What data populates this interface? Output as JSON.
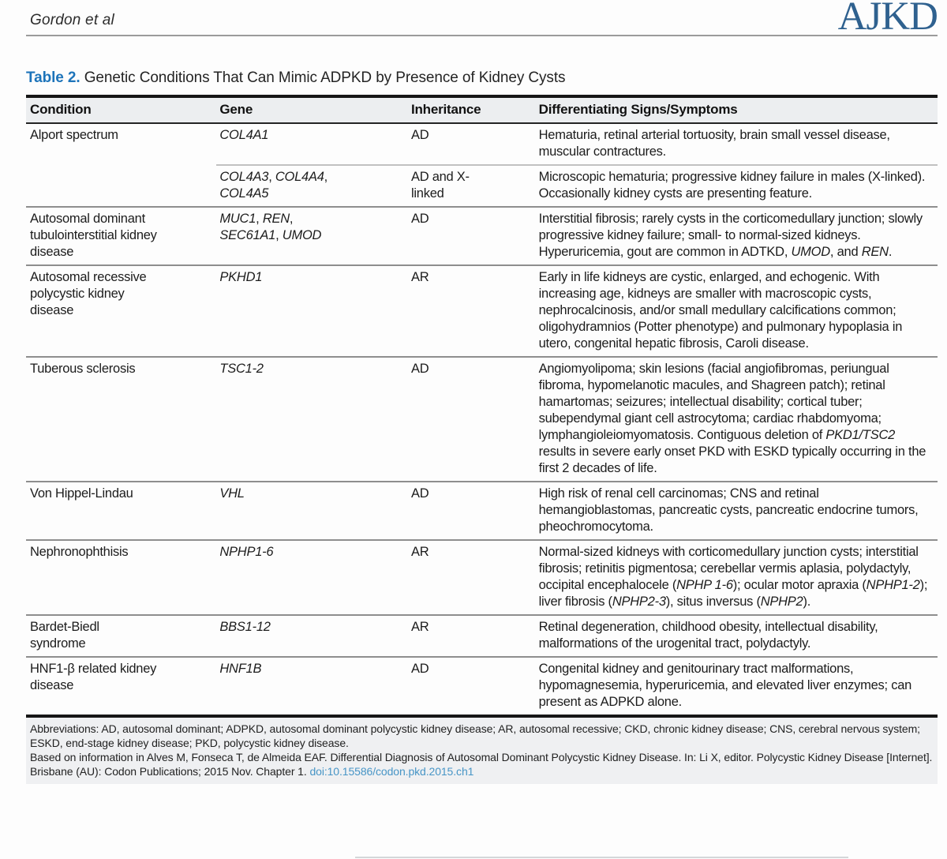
{
  "page": {
    "running_head": "Gordon et al",
    "journal_logo": "AJKD"
  },
  "colors": {
    "table_label_blue": "#1d74ba",
    "logo_blue": "#2f618f",
    "doi_link_blue": "#4795c6",
    "header_row_bg": "#eceef0",
    "footnote_bg": "#eff0f2"
  },
  "table": {
    "label": "Table 2.",
    "title": "Genetic Conditions That Can Mimic ADPKD by Presence of Kidney Cysts",
    "columns": [
      "Condition",
      "Gene",
      "Inheritance",
      "Differentiating Signs/Symptoms"
    ],
    "rows": [
      {
        "sub": false,
        "condition": "Alport spectrum",
        "gene": [
          {
            "i": "COL4A1"
          }
        ],
        "inheritance": "AD",
        "signs": [
          "Hematuria, retinal arterial tortuosity, brain small vessel disease, muscular contractures."
        ]
      },
      {
        "sub": true,
        "condition": "",
        "gene": [
          {
            "i": "COL4A3"
          },
          ", ",
          {
            "i": "COL4A4"
          },
          ", ",
          {
            "i": "COL4A5"
          }
        ],
        "inheritance": "AD and X-linked",
        "signs": [
          "Microscopic hematuria; progressive kidney failure in males (X-linked). Occasionally kidney cysts are presenting feature."
        ]
      },
      {
        "sub": false,
        "condition": "Autosomal dominant tubulointerstitial kidney disease",
        "gene": [
          {
            "i": "MUC1"
          },
          ", ",
          {
            "i": "REN"
          },
          ", ",
          {
            "i": "SEC61A1"
          },
          ", ",
          {
            "i": "UMOD"
          }
        ],
        "inheritance": "AD",
        "signs": [
          "Interstitial fibrosis; rarely cysts in the corticomedullary junction; slowly progressive kidney failure; small- to normal-sized kidneys. Hyperuricemia, gout are common in ADTKD, ",
          {
            "i": "UMOD"
          },
          ", and ",
          {
            "i": "REN"
          },
          "."
        ]
      },
      {
        "sub": false,
        "condition": "Autosomal recessive polycystic kidney disease",
        "gene": [
          {
            "i": "PKHD1"
          }
        ],
        "inheritance": "AR",
        "signs": [
          "Early in life kidneys are cystic, enlarged, and echogenic. With increasing age, kidneys are smaller with macroscopic cysts, nephrocalcinosis, and/or small medullary calcifications common; oligohydramnios (Potter phenotype) and pulmonary hypoplasia in utero, congenital hepatic fibrosis, Caroli disease."
        ]
      },
      {
        "sub": false,
        "condition": "Tuberous sclerosis",
        "gene": [
          {
            "i": "TSC1-2"
          }
        ],
        "inheritance": "AD",
        "signs": [
          "Angiomyolipoma; skin lesions (facial angiofibromas, periungual fibroma, hypomelanotic macules, and Shagreen patch); retinal hamartomas; seizures; intellectual disability; cortical tuber; subependymal giant cell astrocytoma; cardiac rhabdomyoma; lymphangioleiomyomatosis. Contiguous deletion of ",
          {
            "i": "PKD1/TSC2"
          },
          " results in severe early onset PKD with ESKD typically occurring in the first 2 decades of life."
        ]
      },
      {
        "sub": false,
        "condition": "Von Hippel-Lindau",
        "gene": [
          {
            "i": "VHL"
          }
        ],
        "inheritance": "AD",
        "signs": [
          "High risk of renal cell carcinomas; CNS and retinal hemangioblastomas, pancreatic cysts, pancreatic endocrine tumors, pheochromocytoma."
        ]
      },
      {
        "sub": false,
        "condition": "Nephronophthisis",
        "gene": [
          {
            "i": "NPHP1-6"
          }
        ],
        "inheritance": "AR",
        "signs": [
          "Normal-sized kidneys with corticomedullary junction cysts; interstitial fibrosis; retinitis pigmentosa; cerebellar vermis aplasia, polydactyly, occipital encephalocele (",
          {
            "i": "NPHP 1-6"
          },
          "); ocular motor apraxia (",
          {
            "i": "NPHP1-2"
          },
          "); liver fibrosis (",
          {
            "i": "NPHP2-3"
          },
          "), situs inversus (",
          {
            "i": "NPHP2"
          },
          ")."
        ]
      },
      {
        "sub": false,
        "condition": "Bardet-Biedl syndrome",
        "gene": [
          {
            "i": "BBS1-12"
          }
        ],
        "inheritance": "AR",
        "signs": [
          "Retinal degeneration, childhood obesity, intellectual disability, malformations of the urogenital tract, polydactyly."
        ]
      },
      {
        "sub": false,
        "condition": "HNF1-β related kidney disease",
        "gene": [
          {
            "i": "HNF1B"
          }
        ],
        "inheritance": "AD",
        "signs": [
          "Congenital kidney and genitourinary tract malformations, hypomagnesemia, hyperuricemia, and elevated liver enzymes; can present as ADPKD alone."
        ]
      }
    ]
  },
  "footnotes": {
    "abbreviations": "Abbreviations: AD, autosomal dominant; ADPKD, autosomal dominant polycystic kidney disease; AR, autosomal recessive; CKD, chronic kidney disease; CNS, cerebral nervous system; ESKD, end-stage kidney disease; PKD, polycystic kidney disease.",
    "source_text": "Based on information in Alves M, Fonseca T, de Almeida EAF. Differential Diagnosis of Autosomal Dominant Polycystic Kidney Disease. In: Li X, editor. Polycystic Kidney Disease [Internet]. Brisbane (AU): Codon Publications; 2015 Nov. Chapter 1. ",
    "doi": "doi:10.15586/codon.pkd.2015.ch1"
  }
}
